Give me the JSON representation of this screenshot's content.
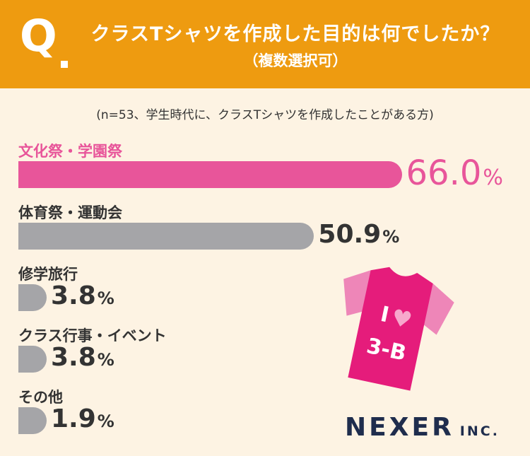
{
  "header": {
    "q_mark": "Q",
    "title": "クラスTシャツを作成した目的は何でしたか？",
    "subtitle": "（複数選択可）"
  },
  "note": "(n=53、学生時代に、クラスTシャツを作成したことがある方)",
  "chart_data": {
    "type": "bar",
    "orientation": "horizontal",
    "unit": "%",
    "categories": [
      "文化祭・学園祭",
      "体育祭・運動会",
      "修学旅行",
      "クラス行事・イベント",
      "その他"
    ],
    "values": [
      66.0,
      50.9,
      3.8,
      3.8,
      1.9
    ],
    "value_labels": [
      "66.0",
      "50.9",
      "3.8",
      "3.8",
      "1.9"
    ],
    "highlight_index": 0,
    "xlim": [
      0,
      100
    ],
    "colors": {
      "highlight": "#e8559a",
      "default": "#a5a5a8",
      "highlight_text": "#e8559a",
      "text": "#333333"
    }
  },
  "illustration": {
    "shirt_text_top": "I",
    "shirt_text_bottom": "3-B",
    "heart": "♥"
  },
  "logo": {
    "brand": "NEXER",
    "suffix": "INC."
  },
  "colors": {
    "header": "#ee9b10",
    "background": "#fdf3e3",
    "shirt": "#e51c7b",
    "shirt_sleeve": "#ee86b8"
  }
}
